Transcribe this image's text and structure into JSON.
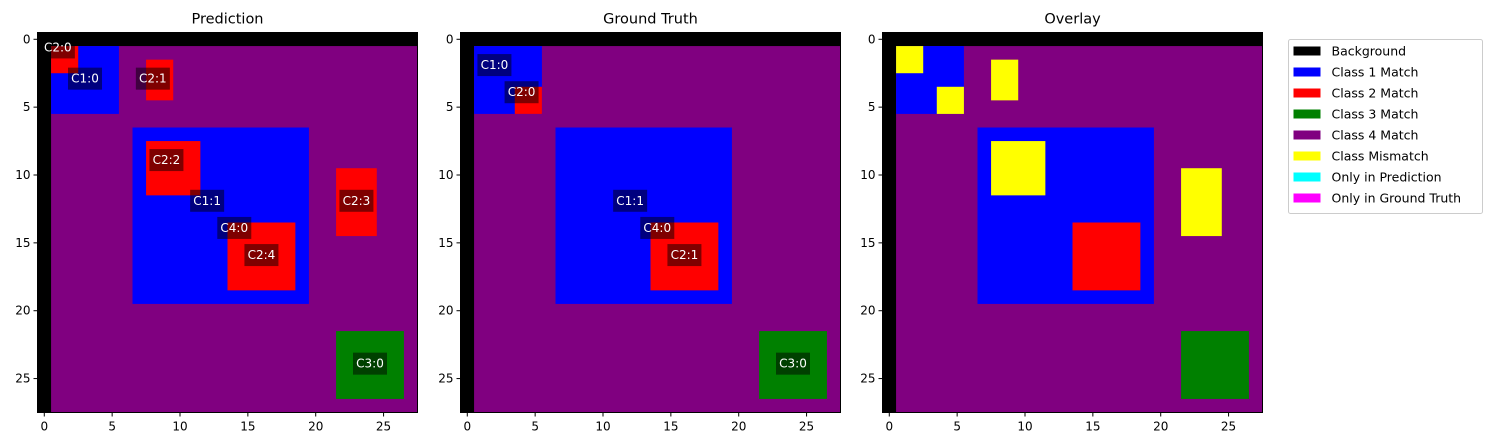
{
  "chart_data": [
    {
      "type": "heatmap",
      "title": "Prediction",
      "grid": false,
      "x_ticks": [
        0,
        5,
        10,
        15,
        20,
        25
      ],
      "y_ticks": [
        0,
        5,
        10,
        15,
        20,
        25
      ],
      "xlim": [
        -0.5,
        27.5
      ],
      "ylim": [
        27.5,
        -0.5
      ],
      "regions": [
        {
          "cls": 4,
          "x0": 1,
          "x1": 27,
          "y0": 1,
          "y1": 27
        },
        {
          "cls": 1,
          "x0": 1,
          "x1": 5,
          "y0": 1,
          "y1": 5
        },
        {
          "cls": 2,
          "x0": 1,
          "x1": 2,
          "y0": 1,
          "y1": 2
        },
        {
          "cls": 2,
          "x0": 8,
          "x1": 9,
          "y0": 2,
          "y1": 4
        },
        {
          "cls": 1,
          "x0": 7,
          "x1": 19,
          "y0": 7,
          "y1": 19
        },
        {
          "cls": 2,
          "x0": 8,
          "x1": 11,
          "y0": 8,
          "y1": 11
        },
        {
          "cls": 2,
          "x0": 14,
          "x1": 18,
          "y0": 14,
          "y1": 18
        },
        {
          "cls": 2,
          "x0": 22,
          "x1": 24,
          "y0": 10,
          "y1": 14
        },
        {
          "cls": 3,
          "x0": 22,
          "x1": 26,
          "y0": 22,
          "y1": 26
        }
      ],
      "labels": [
        {
          "text": "C2:0",
          "x": 1.0,
          "y": 0.6
        },
        {
          "text": "C1:0",
          "x": 3.0,
          "y": 2.9
        },
        {
          "text": "C2:1",
          "x": 8.0,
          "y": 2.9
        },
        {
          "text": "C2:2",
          "x": 9.0,
          "y": 8.9
        },
        {
          "text": "C1:1",
          "x": 12.0,
          "y": 11.9
        },
        {
          "text": "C4:0",
          "x": 14.0,
          "y": 13.9
        },
        {
          "text": "C2:4",
          "x": 16.0,
          "y": 15.9
        },
        {
          "text": "C2:3",
          "x": 23.0,
          "y": 11.9
        },
        {
          "text": "C3:0",
          "x": 24.0,
          "y": 23.9
        }
      ]
    },
    {
      "type": "heatmap",
      "title": "Ground Truth",
      "grid": false,
      "x_ticks": [
        0,
        5,
        10,
        15,
        20,
        25
      ],
      "y_ticks": [
        0,
        5,
        10,
        15,
        20,
        25
      ],
      "xlim": [
        -0.5,
        27.5
      ],
      "ylim": [
        27.5,
        -0.5
      ],
      "regions": [
        {
          "cls": 4,
          "x0": 1,
          "x1": 27,
          "y0": 1,
          "y1": 27
        },
        {
          "cls": 1,
          "x0": 1,
          "x1": 5,
          "y0": 1,
          "y1": 5
        },
        {
          "cls": 2,
          "x0": 4,
          "x1": 5,
          "y0": 4,
          "y1": 5
        },
        {
          "cls": 1,
          "x0": 7,
          "x1": 19,
          "y0": 7,
          "y1": 19
        },
        {
          "cls": 2,
          "x0": 14,
          "x1": 18,
          "y0": 14,
          "y1": 18
        },
        {
          "cls": 3,
          "x0": 22,
          "x1": 26,
          "y0": 22,
          "y1": 26
        }
      ],
      "labels": [
        {
          "text": "C1:0",
          "x": 2.0,
          "y": 1.9
        },
        {
          "text": "C2:0",
          "x": 4.0,
          "y": 3.9
        },
        {
          "text": "C1:1",
          "x": 12.0,
          "y": 11.9
        },
        {
          "text": "C4:0",
          "x": 14.0,
          "y": 13.9
        },
        {
          "text": "C2:1",
          "x": 16.0,
          "y": 15.9
        },
        {
          "text": "C3:0",
          "x": 24.0,
          "y": 23.9
        }
      ]
    },
    {
      "type": "heatmap",
      "title": "Overlay",
      "grid": false,
      "x_ticks": [
        0,
        5,
        10,
        15,
        20,
        25
      ],
      "y_ticks": [
        0,
        5,
        10,
        15,
        20,
        25
      ],
      "xlim": [
        -0.5,
        27.5
      ],
      "ylim": [
        27.5,
        -0.5
      ],
      "regions": [
        {
          "cls": 4,
          "x0": 1,
          "x1": 27,
          "y0": 1,
          "y1": 27
        },
        {
          "cls": 1,
          "x0": 1,
          "x1": 5,
          "y0": 1,
          "y1": 5
        },
        {
          "cls": 5,
          "x0": 1,
          "x1": 2,
          "y0": 1,
          "y1": 2
        },
        {
          "cls": 5,
          "x0": 4,
          "x1": 5,
          "y0": 4,
          "y1": 5
        },
        {
          "cls": 5,
          "x0": 8,
          "x1": 9,
          "y0": 2,
          "y1": 4
        },
        {
          "cls": 1,
          "x0": 7,
          "x1": 19,
          "y0": 7,
          "y1": 19
        },
        {
          "cls": 5,
          "x0": 8,
          "x1": 11,
          "y0": 8,
          "y1": 11
        },
        {
          "cls": 2,
          "x0": 14,
          "x1": 18,
          "y0": 14,
          "y1": 18
        },
        {
          "cls": 5,
          "x0": 22,
          "x1": 24,
          "y0": 10,
          "y1": 14
        },
        {
          "cls": 3,
          "x0": 22,
          "x1": 26,
          "y0": 22,
          "y1": 26
        }
      ],
      "labels": []
    }
  ],
  "legend": {
    "placement": "upper-left-outside",
    "entries": [
      {
        "name": "Background",
        "color": "#000000"
      },
      {
        "name": "Class 1 Match",
        "color": "#0000ff"
      },
      {
        "name": "Class 2 Match",
        "color": "#ff0000"
      },
      {
        "name": "Class 3 Match",
        "color": "#008000"
      },
      {
        "name": "Class 4 Match",
        "color": "#800080"
      },
      {
        "name": "Class Mismatch",
        "color": "#ffff00"
      },
      {
        "name": "Only in Prediction",
        "color": "#00ffff"
      },
      {
        "name": "Only in Ground Truth",
        "color": "#ff00ff"
      }
    ]
  },
  "class_colors": {
    "0": "#000000",
    "1": "#0000ff",
    "2": "#ff0000",
    "3": "#008000",
    "4": "#800080",
    "5": "#ffff00"
  },
  "label_box_color": "#000000"
}
